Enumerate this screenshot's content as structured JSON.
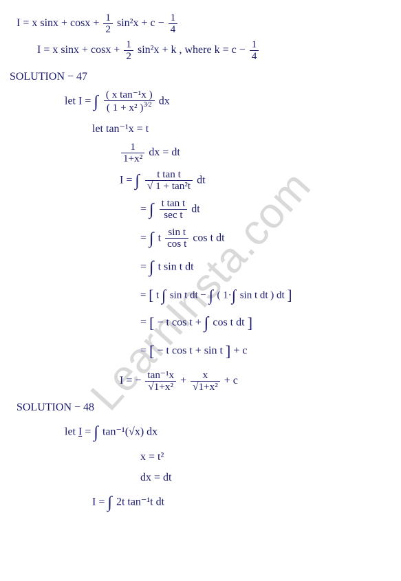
{
  "watermark": "LearnInsta.com",
  "lines": {
    "l1": "I = x sinx + cosx + ",
    "l1b": " sin²x + c − ",
    "half_num": "1",
    "half_den": "2",
    "quarter_num": "1",
    "quarter_den": "4",
    "l2": "I = x sinx + cosx + ",
    "l2b": " sin²x + k , where k = c − ",
    "sol47": "SOLUTION − 47",
    "let1": "let   I = ",
    "int1_num": "( x tan⁻¹x )",
    "int1_den": "( 1 + x² )",
    "int1_exp": "3⁄2",
    "dx": " dx",
    "let2": "let  tan⁻¹x = t",
    "dtline_num": "1",
    "dtline_den": "1+x²",
    "dtline_b": " dx = dt",
    "i2a": "I  =  ",
    "i2_num": "t tan t",
    "i2_den": "√ 1 + tan²t",
    "i2_b": " dt",
    "i3_num": "t tan t",
    "i3_den": "sec t",
    "i3_b": " dt",
    "i4a": " t ",
    "i4_num": "sin t",
    "i4_den": "cos t",
    "i4_b": " cos t dt",
    "i5": " t sin t dt",
    "i6a": " t ",
    "i6_in1": " sin t dt − ",
    "i6_in2": " ( 1·",
    "i6_in3": " sin t dt ) dt ",
    "i7": "− t cos t + ",
    "i7b": " cos t dt",
    "i8": "− t cos t + sin t",
    "i8b": " + c",
    "finalI": "I  =  − ",
    "final_num1": "tan⁻¹x",
    "final_den1": "√1+x²",
    "final_plus": "  +  ",
    "final_num2": "x",
    "final_den2": "√1+x²",
    "final_c": "  + c",
    "sol48": "SOLUTION − 48",
    "let48": "let   ",
    "I48": "I",
    "eq48": " = ",
    "i48_in": " tan⁻¹(√x) dx",
    "sub48a": "x = t²",
    "sub48b": "dx = dt",
    "i48final": "I  =  ",
    "i48fin_in": " 2t tan⁻¹t dt",
    "eq": "=  "
  }
}
